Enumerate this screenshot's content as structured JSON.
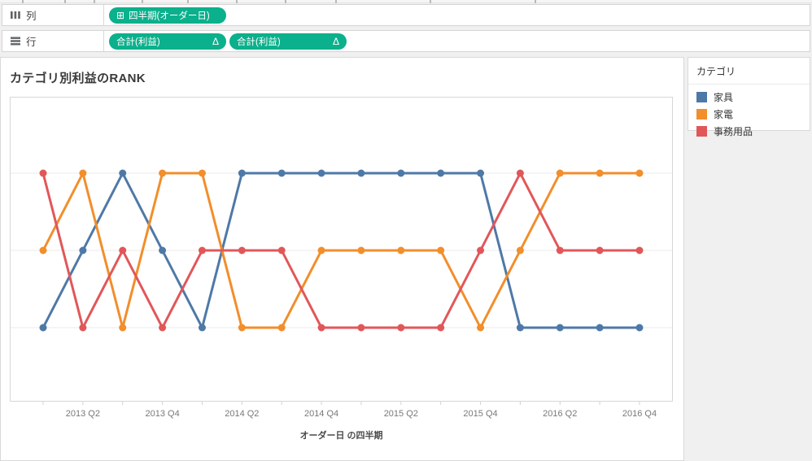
{
  "shelves": {
    "columns_shelf": {
      "label": "列",
      "pills": [
        {
          "icon": "⊞",
          "label": "四半期(オーダー日)"
        }
      ]
    },
    "rows_shelf": {
      "label": "行",
      "pills": [
        {
          "label": "合計(利益)",
          "badge": "Δ"
        },
        {
          "label": "合計(利益)",
          "badge": "Δ"
        }
      ]
    }
  },
  "colors": {
    "pill_green": "#0bb08c",
    "background": "#f0f0f0",
    "grid_line": "#ebebeb",
    "plot_border": "#d7d7d7",
    "axis_tick": "#d2d2d2"
  },
  "legend": {
    "title": "カテゴリ",
    "items": [
      {
        "label": "家具",
        "color": "#4e79a7"
      },
      {
        "label": "家電",
        "color": "#f28e2b"
      },
      {
        "label": "事務用品",
        "color": "#e15759"
      }
    ]
  },
  "chart_data": {
    "type": "line",
    "title": "カテゴリ別利益のRANK",
    "xlabel": "オーダー日 の四半期",
    "ylabel": "",
    "x": [
      "2013 Q1",
      "2013 Q2",
      "2013 Q3",
      "2013 Q4",
      "2014 Q1",
      "2014 Q2",
      "2014 Q3",
      "2014 Q4",
      "2015 Q1",
      "2015 Q2",
      "2015 Q3",
      "2015 Q4",
      "2016 Q1",
      "2016 Q2",
      "2016 Q3",
      "2016 Q4"
    ],
    "x_tick_labels": [
      "2013 Q2",
      "2013 Q4",
      "2014 Q2",
      "2014 Q4",
      "2015 Q2",
      "2015 Q4",
      "2016 Q2",
      "2016 Q4"
    ],
    "y_axis": "rank 1-3, rank 1 at top, no visible y labels",
    "ylim": [
      1,
      3
    ],
    "grid": "faint horizontal line at each rank",
    "legend_position": "right",
    "series": [
      {
        "name": "家具",
        "color": "#4e79a7",
        "values": [
          3,
          2,
          1,
          2,
          3,
          1,
          1,
          1,
          1,
          1,
          1,
          1,
          3,
          3,
          3,
          3
        ]
      },
      {
        "name": "家電",
        "color": "#f28e2b",
        "values": [
          2,
          1,
          3,
          1,
          1,
          3,
          3,
          2,
          2,
          2,
          2,
          3,
          2,
          1,
          1,
          1
        ]
      },
      {
        "name": "事務用品",
        "color": "#e15759",
        "values": [
          1,
          3,
          2,
          3,
          2,
          2,
          2,
          3,
          3,
          3,
          3,
          2,
          1,
          2,
          2,
          2
        ]
      }
    ]
  }
}
